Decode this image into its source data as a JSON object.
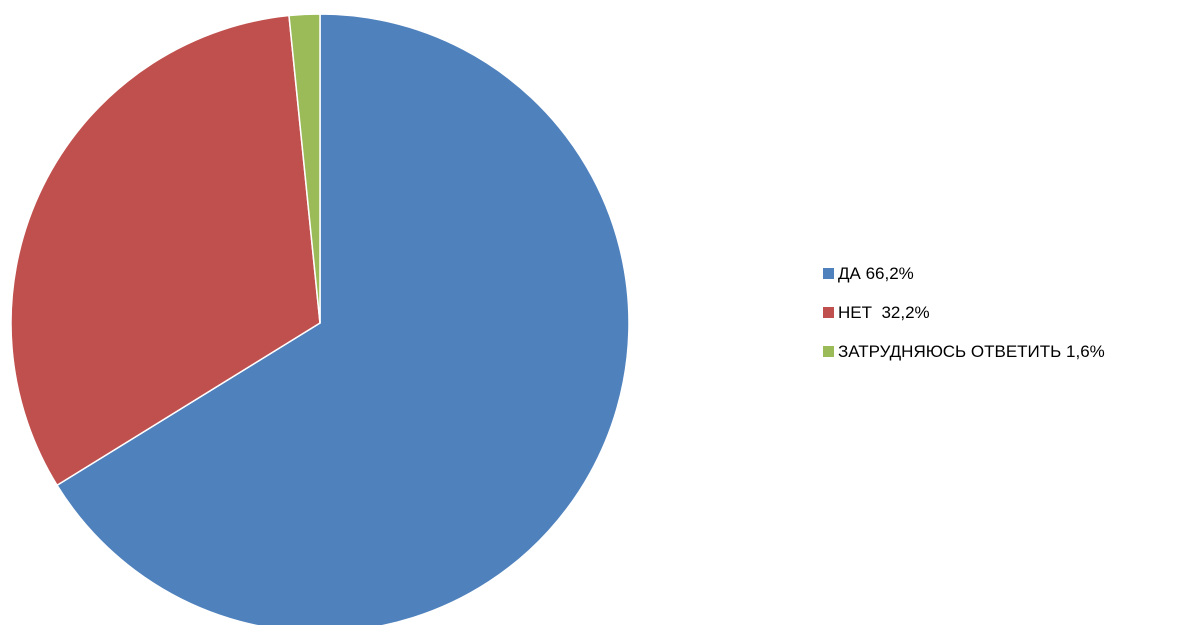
{
  "chart_data": {
    "type": "pie",
    "title": "",
    "legend_position": "right",
    "start_angle_deg": 0,
    "direction": "clockwise",
    "slices": [
      {
        "label": "ДА 66,2%",
        "value": 66.2,
        "color": "#4F81BD"
      },
      {
        "label": "НЕТ  32,2%",
        "value": 32.2,
        "color": "#C0504D"
      },
      {
        "label": "ЗАТРУДНЯЮСЬ ОТВЕТИТЬ 1,6%",
        "value": 1.6,
        "color": "#9BBB59"
      }
    ]
  }
}
